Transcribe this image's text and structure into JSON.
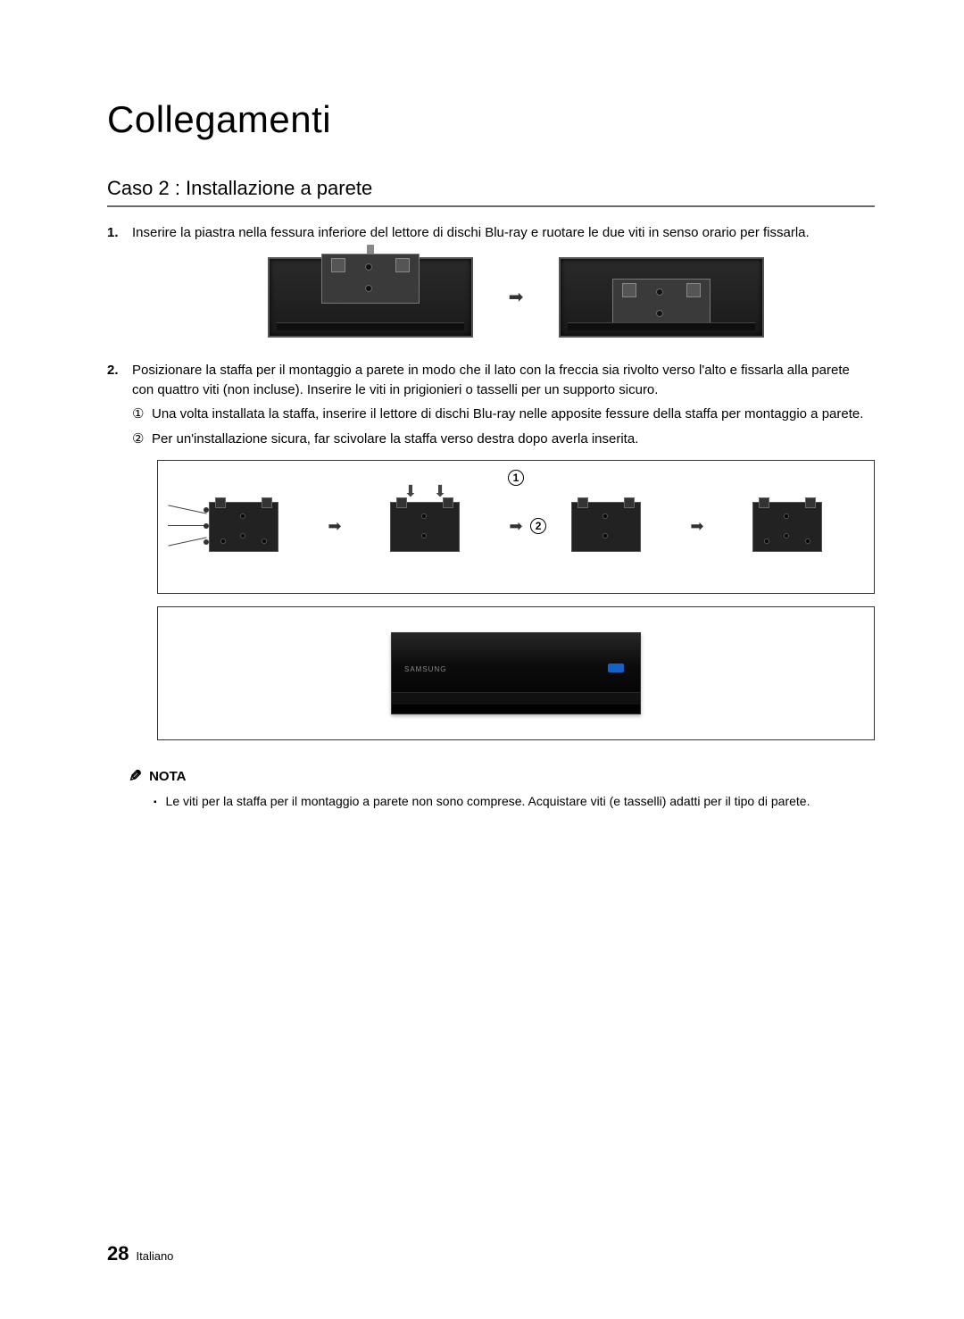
{
  "heading": "Collegamenti",
  "section_title": "Caso 2 : Installazione a parete",
  "steps": [
    {
      "num": "1.",
      "text": "Inserire la piastra nella fessura inferiore del lettore di dischi Blu-ray e ruotare le due viti in senso orario per fissarla."
    },
    {
      "num": "2.",
      "text": "Posizionare la staffa per il montaggio a parete in modo che il lato con la freccia sia rivolto verso l'alto e fissarla alla parete con quattro viti (non incluse). Inserire le viti in prigionieri o tasselli per un supporto sicuro.",
      "subs": [
        {
          "num": "①",
          "text": "Una volta installata la staffa, inserire il lettore di dischi Blu-ray nelle apposite fessure della staffa per montaggio a parete."
        },
        {
          "num": "②",
          "text": "Per un'installazione sicura, far scivolare la staffa verso destra dopo averla inserita."
        }
      ]
    }
  ],
  "illustration": {
    "circ1": "1",
    "circ2": "2",
    "player_brand": "SAMSUNG"
  },
  "note": {
    "label": "NOTA",
    "items": [
      "Le viti per la staffa per il montaggio a parete non sono comprese. Acquistare viti (e tasselli) adatti per il tipo di parete."
    ]
  },
  "footer": {
    "page": "28",
    "lang": "Italiano"
  },
  "colors": {
    "rule": "#6a6a6a",
    "device_dark": "#1a1a1a",
    "bd_blue": "#1163c9"
  }
}
